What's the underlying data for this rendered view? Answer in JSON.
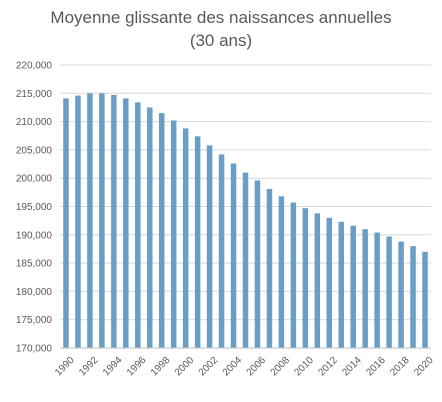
{
  "chart_data": {
    "type": "bar",
    "title_lines": [
      "Moyenne glissante des naissances annuelles",
      "(30 ans)"
    ],
    "xlabel": "",
    "ylabel": "",
    "ylim": [
      170000,
      220000
    ],
    "y_ticks": [
      170000,
      175000,
      180000,
      185000,
      190000,
      195000,
      200000,
      205000,
      210000,
      215000,
      220000
    ],
    "y_tick_labels": [
      "170,000",
      "175,000",
      "180,000",
      "185,000",
      "190,000",
      "195,000",
      "200,000",
      "205,000",
      "210,000",
      "215,000",
      "220,000"
    ],
    "x_tick_labels": [
      "1990",
      "1992",
      "1994",
      "1996",
      "1998",
      "2000",
      "2002",
      "2004",
      "2006",
      "2008",
      "2010",
      "2012",
      "2014",
      "2016",
      "2018",
      "2020"
    ],
    "categories": [
      "1990",
      "1991",
      "1992",
      "1993",
      "1994",
      "1995",
      "1996",
      "1997",
      "1998",
      "1999",
      "2000",
      "2001",
      "2002",
      "2003",
      "2004",
      "2005",
      "2006",
      "2007",
      "2008",
      "2009",
      "2010",
      "2011",
      "2012",
      "2013",
      "2014",
      "2015",
      "2016",
      "2017",
      "2018",
      "2019",
      "2020"
    ],
    "values": [
      214100,
      214600,
      215000,
      215000,
      214700,
      214100,
      213400,
      212500,
      211500,
      210200,
      208800,
      207400,
      205800,
      204200,
      202600,
      201000,
      199600,
      198100,
      196800,
      195700,
      194700,
      193800,
      193000,
      192300,
      191600,
      191000,
      190400,
      189700,
      188800,
      188000,
      187000
    ],
    "bar_color": "#6a9ec5",
    "grid": true,
    "legend": "none"
  }
}
